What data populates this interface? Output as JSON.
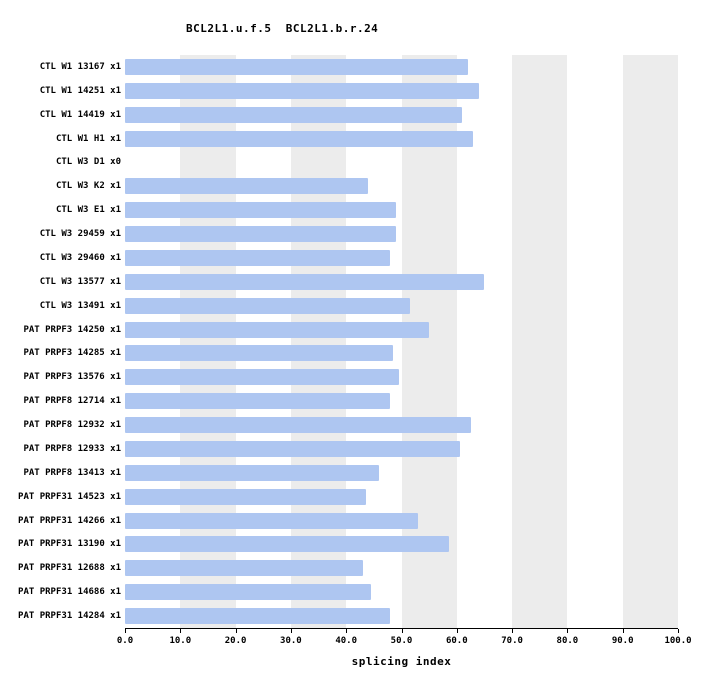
{
  "title": "BCL2L1.u.f.5  BCL2L1.b.r.24",
  "chart_data": {
    "type": "bar",
    "orientation": "horizontal",
    "title": "BCL2L1.u.f.5  BCL2L1.b.r.24",
    "xlabel": "splicing index",
    "xlim": [
      0,
      100
    ],
    "x_ticks": [
      "0.0",
      "10.0",
      "20.0",
      "30.0",
      "40.0",
      "50.0",
      "60.0",
      "70.0",
      "80.0",
      "90.0",
      "100.0"
    ],
    "grid": "vertical shaded bands",
    "stripe_bands": [
      [
        10,
        20
      ],
      [
        30,
        40
      ],
      [
        50,
        60
      ],
      [
        70,
        80
      ],
      [
        90,
        100
      ]
    ],
    "bar_color": "#aec6f1",
    "stripe_color": "#ececec",
    "legend_position": "none",
    "categories": [
      "CTL W1 13167 x1",
      "CTL W1 14251 x1",
      "CTL W1 14419 x1",
      "CTL W1 H1 x1",
      "CTL W3 D1 x0",
      "CTL W3 K2 x1",
      "CTL W3 E1 x1",
      "CTL W3 29459 x1",
      "CTL W3 29460 x1",
      "CTL W3 13577 x1",
      "CTL W3 13491 x1",
      "PAT PRPF3 14250 x1",
      "PAT PRPF3 14285 x1",
      "PAT PRPF3 13576 x1",
      "PAT PRPF8 12714 x1",
      "PAT PRPF8 12932 x1",
      "PAT PRPF8 12933 x1",
      "PAT PRPF8 13413 x1",
      "PAT PRPF31 14523 x1",
      "PAT PRPF31 14266 x1",
      "PAT PRPF31 13190 x1",
      "PAT PRPF31 12688 x1",
      "PAT PRPF31 14686 x1",
      "PAT PRPF31 14284 x1"
    ],
    "values": [
      62,
      64,
      61,
      63,
      0,
      44,
      49,
      49,
      48,
      65,
      51.5,
      55,
      48.5,
      49.5,
      48,
      62.5,
      60.5,
      46,
      43.5,
      53,
      58.5,
      43,
      44.5,
      48
    ]
  }
}
